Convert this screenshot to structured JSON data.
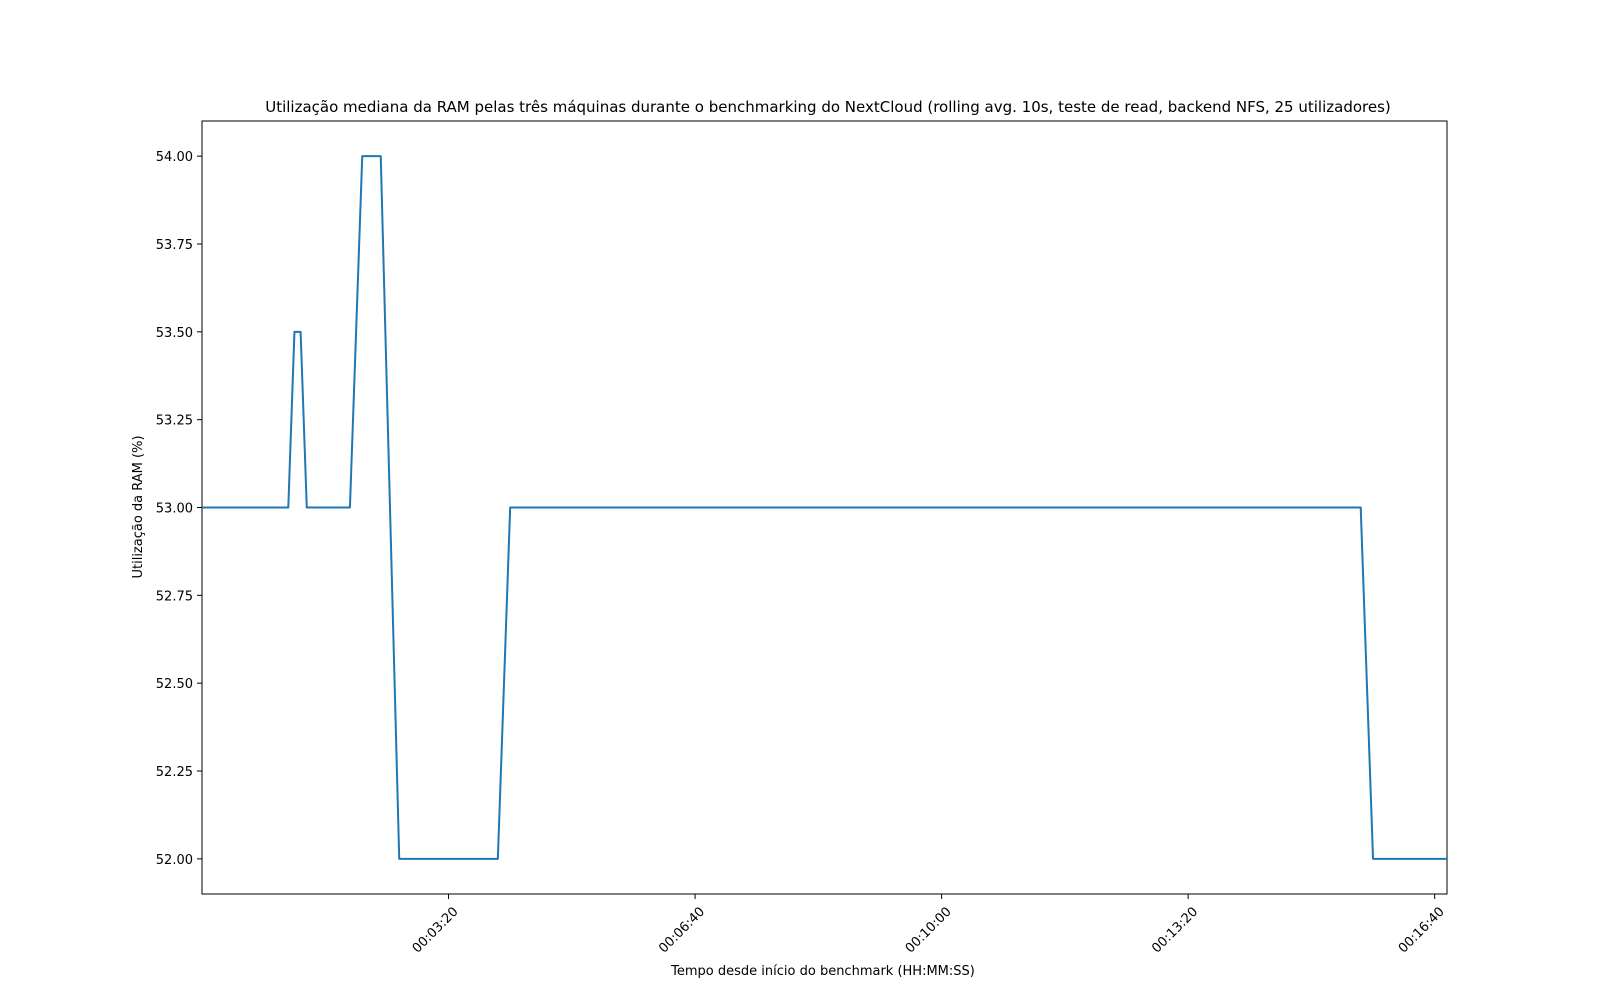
{
  "chart_data": {
    "type": "line",
    "title": "Utilização mediana da RAM pelas três máquinas durante o benchmarking do NextCloud (rolling avg. 10s, teste de read, backend NFS, 25 utilizadores)",
    "xlabel": "Tempo desde início do benchmark (HH:MM:SS)",
    "ylabel": "Utilização da RAM (%)",
    "xlim": [
      "00:00:00",
      "00:16:50"
    ],
    "ylim": [
      51.9,
      54.1
    ],
    "x_ticks": [
      "00:03:20",
      "00:06:40",
      "00:10:00",
      "00:13:20",
      "00:16:40"
    ],
    "y_ticks": [
      "52.00",
      "52.25",
      "52.50",
      "52.75",
      "53.00",
      "53.25",
      "53.50",
      "53.75",
      "54.00"
    ],
    "grid": false,
    "line_color": "#1f77b4",
    "series": [
      {
        "x": [
          "00:00:00",
          "00:01:10",
          "00:01:15",
          "00:01:20",
          "00:01:25",
          "00:02:00",
          "00:02:10",
          "00:02:25",
          "00:02:40",
          "00:04:00",
          "00:04:10",
          "00:15:40",
          "00:15:50",
          "00:16:50"
        ],
        "values": [
          53.0,
          53.0,
          53.5,
          53.5,
          53.0,
          53.0,
          54.0,
          54.0,
          52.0,
          52.0,
          53.0,
          53.0,
          52.0,
          52.0
        ]
      }
    ]
  }
}
